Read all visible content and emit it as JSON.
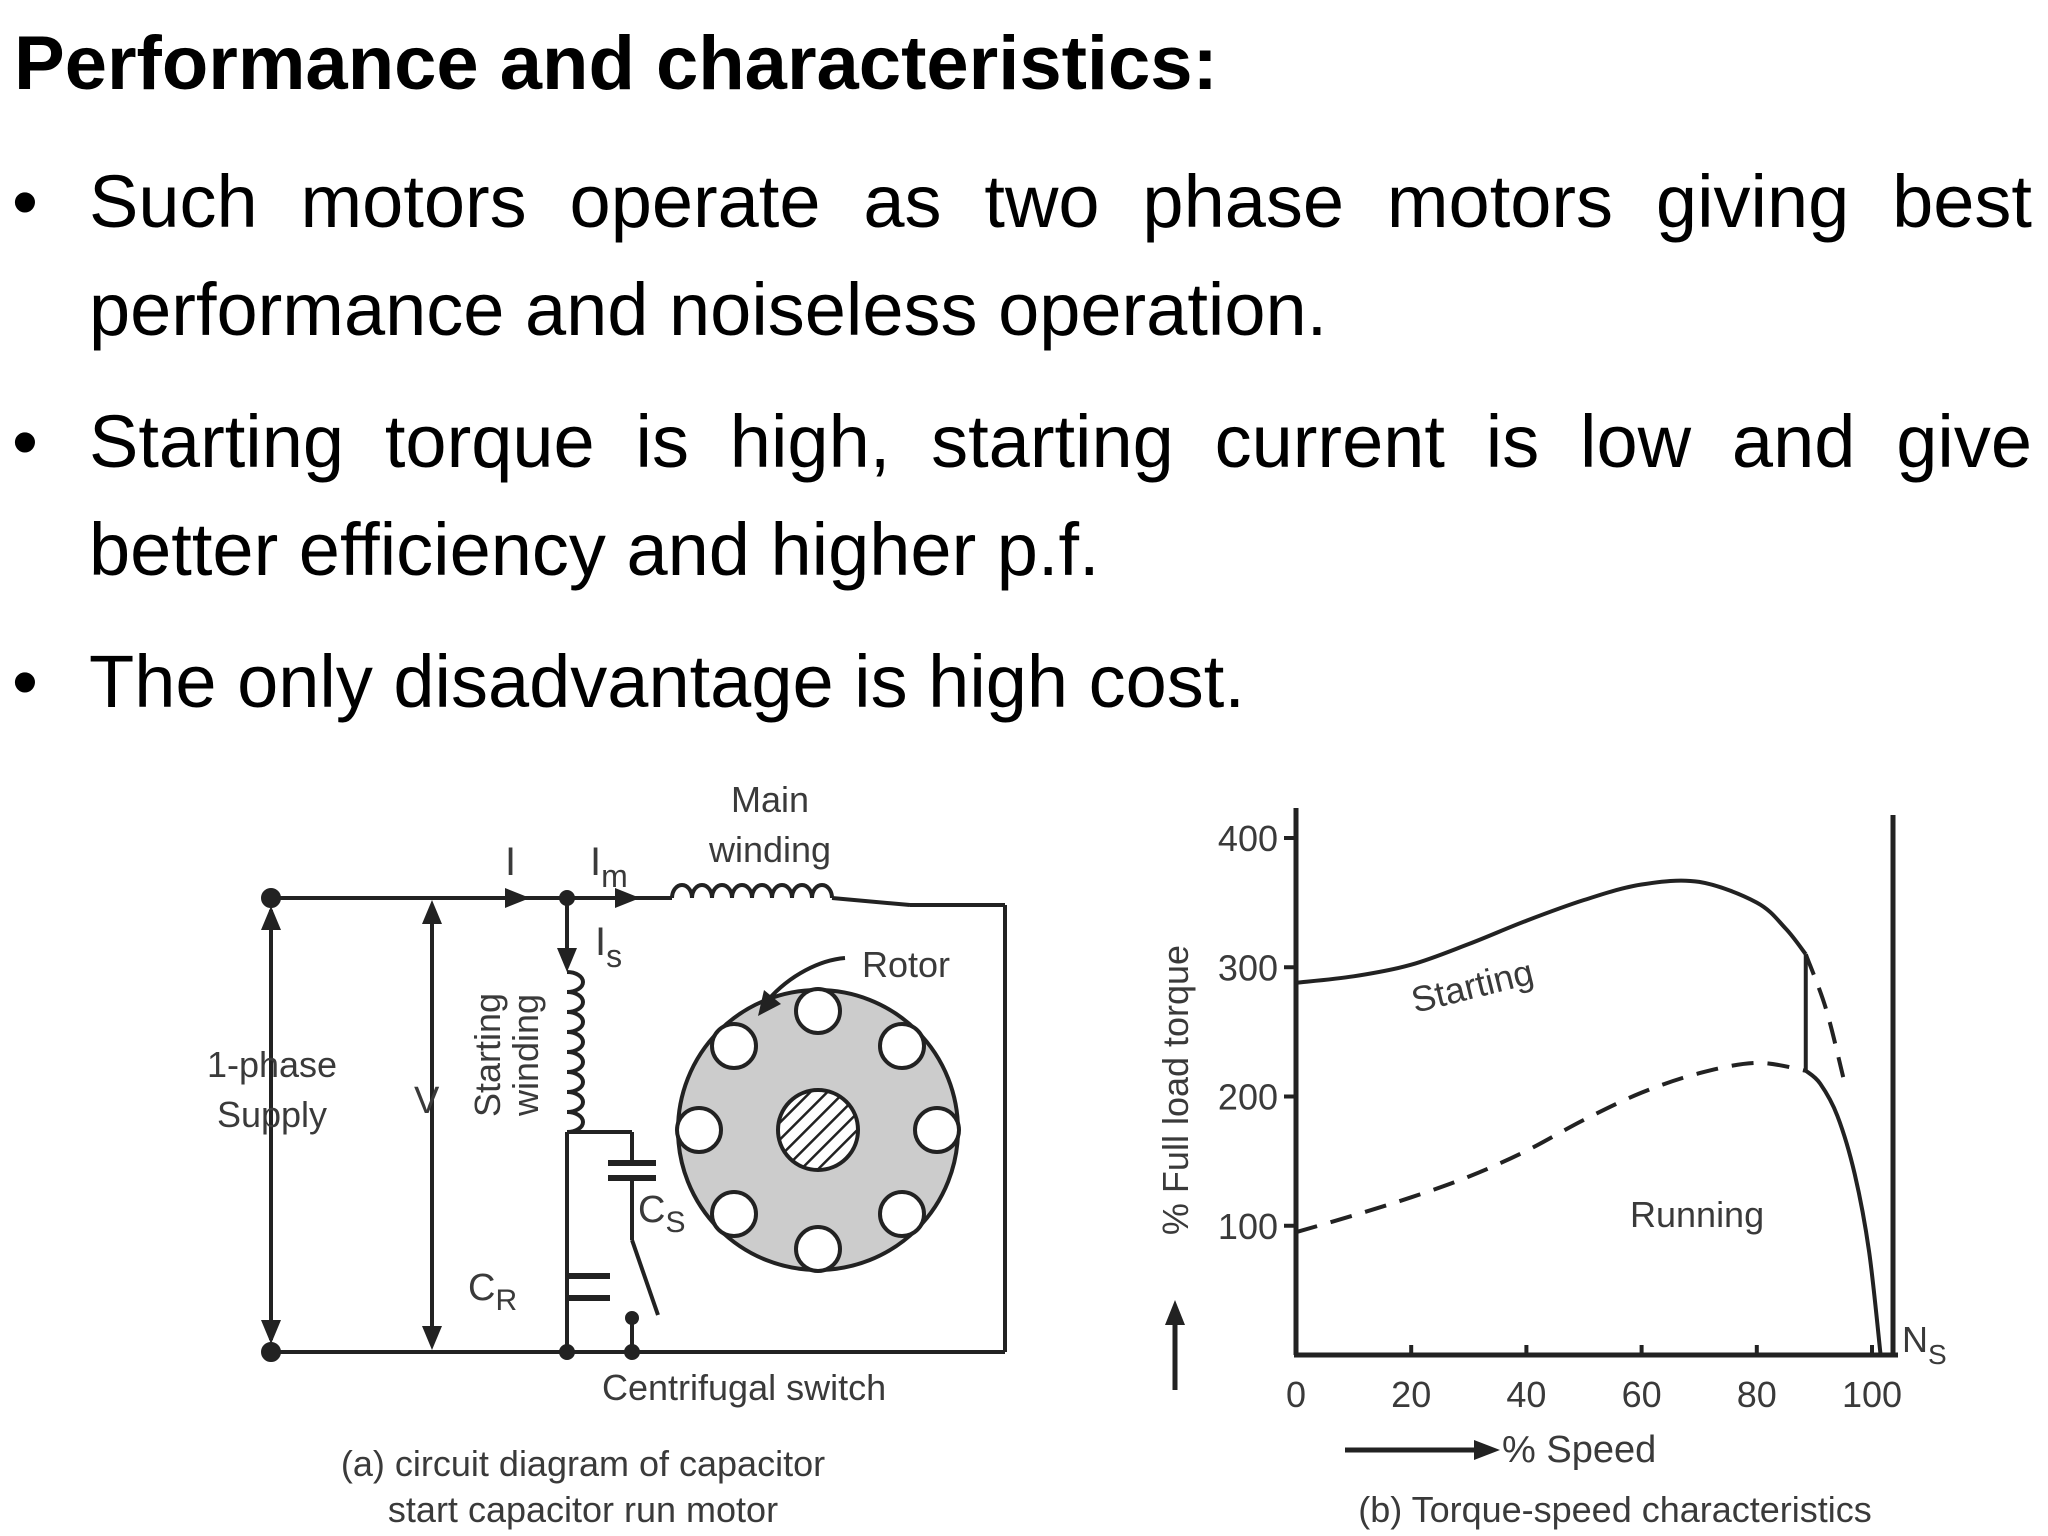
{
  "slide": {
    "heading": "Performance and characteristics:",
    "bullet_symbol": "•",
    "bullets": [
      "Such motors operate as two phase motors giving best performance and noiseless operation.",
      "Starting torque is high, starting current is low and give better efficiency and higher p.f.",
      "The only disadvantage is high cost."
    ]
  },
  "circuit": {
    "main_winding_label_1": "Main",
    "main_winding_label_2": "winding",
    "current_label": "I",
    "im_main": "I",
    "im_sub": "m",
    "is_main": "I",
    "is_sub": "s",
    "rotor_label": "Rotor",
    "supply_label_1": "1-phase",
    "supply_label_2": "Supply",
    "voltage_label": "V",
    "starting_winding_1": "Starting",
    "starting_winding_2": "winding",
    "cs_main": "C",
    "cs_sub": "S",
    "cr_main": "C",
    "cr_sub": "R",
    "switch_label": "Centrifugal switch",
    "caption_1": "(a) circuit diagram of capacitor",
    "caption_2": "start capacitor run motor"
  },
  "chart_data": {
    "type": "line",
    "ylabel": "% Full load torque",
    "xlabel": "% Speed",
    "xlim": [
      0,
      105
    ],
    "ylim": [
      0,
      420
    ],
    "y_ticks": [
      100,
      200,
      300,
      400
    ],
    "x_ticks": [
      0,
      20,
      40,
      60,
      80,
      100
    ],
    "series": [
      {
        "name": "Starting",
        "style": "solid",
        "x": [
          0,
          10,
          20,
          30,
          40,
          50,
          60,
          70,
          80,
          85,
          88.5
        ],
        "y": [
          288,
          293,
          302,
          318,
          336,
          352,
          364,
          366,
          350,
          330,
          310
        ]
      },
      {
        "name": "Running",
        "style": "dashed",
        "x": [
          0,
          10,
          20,
          30,
          40,
          50,
          60,
          70,
          80,
          88.5
        ],
        "y": [
          95,
          108,
          122,
          138,
          158,
          182,
          203,
          218,
          226,
          220
        ]
      },
      {
        "name": "Starting",
        "style": "dashed-continuation",
        "x": [
          88.5,
          92,
          95
        ],
        "y": [
          310,
          268,
          215
        ]
      },
      {
        "name": "Running",
        "style": "solid-after-switch",
        "x": [
          88.5,
          91,
          94,
          97,
          99.5,
          101.5
        ],
        "y": [
          220,
          210,
          185,
          140,
          80,
          0
        ]
      }
    ],
    "switch_speed": 88.5,
    "sync_marker": {
      "main": "N",
      "sub": "S"
    },
    "caption": "(b) Torque-speed characteristics"
  }
}
